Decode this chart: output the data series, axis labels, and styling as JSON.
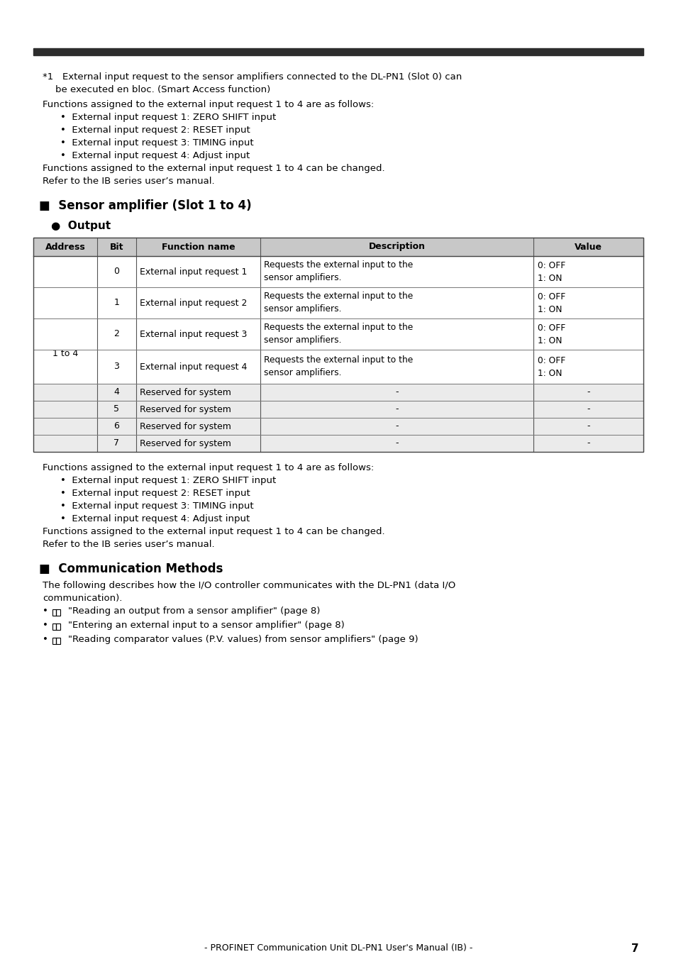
{
  "bg_color": "#ffffff",
  "text_color": "#000000",
  "header_bar_color": "#2d2d2d",
  "table_header_bg": "#c8c8c8",
  "table_alt_bg": "#ebebeb",
  "table_white_bg": "#ffffff",
  "table_headers": [
    "Address",
    "Bit",
    "Function name",
    "Description",
    "Value"
  ],
  "table_rows": [
    {
      "bit": "0",
      "func": "External input request 1",
      "desc1": "Requests the external input to the",
      "desc2": "sensor amplifiers.",
      "value1": "0: OFF",
      "value2": "1: ON",
      "shaded": false
    },
    {
      "bit": "1",
      "func": "External input request 2",
      "desc1": "Requests the external input to the",
      "desc2": "sensor amplifiers.",
      "value1": "0: OFF",
      "value2": "1: ON",
      "shaded": false
    },
    {
      "bit": "2",
      "func": "External input request 3",
      "desc1": "Requests the external input to the",
      "desc2": "sensor amplifiers.",
      "value1": "0: OFF",
      "value2": "1: ON",
      "shaded": false
    },
    {
      "bit": "3",
      "func": "External input request 4",
      "desc1": "Requests the external input to the",
      "desc2": "sensor amplifiers.",
      "value1": "0: OFF",
      "value2": "1: ON",
      "shaded": false
    },
    {
      "bit": "4",
      "func": "Reserved for system",
      "desc1": "-",
      "desc2": "",
      "value1": "-",
      "value2": "",
      "shaded": true
    },
    {
      "bit": "5",
      "func": "Reserved for system",
      "desc1": "-",
      "desc2": "",
      "value1": "-",
      "value2": "",
      "shaded": true
    },
    {
      "bit": "6",
      "func": "Reserved for system",
      "desc1": "-",
      "desc2": "",
      "value1": "-",
      "value2": "",
      "shaded": true
    },
    {
      "bit": "7",
      "func": "Reserved for system",
      "desc1": "-",
      "desc2": "",
      "value1": "-",
      "value2": "",
      "shaded": true
    }
  ],
  "address_label": "1 to 4",
  "footer_text": "- PROFINET Communication Unit DL-PN1 User's Manual (IB) -",
  "page_number": "7"
}
